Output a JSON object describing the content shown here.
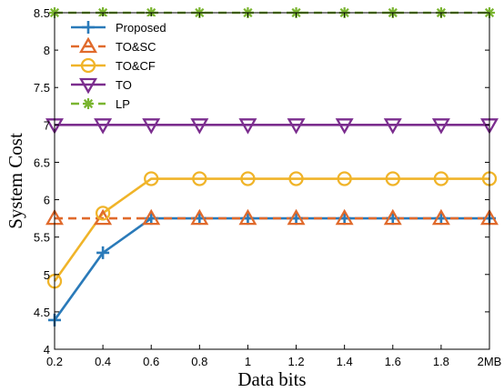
{
  "chart_data": {
    "type": "line",
    "xlabel": "Data bits",
    "ylabel": "System Cost",
    "x": [
      0.2,
      0.4,
      0.6,
      0.8,
      1.0,
      1.2,
      1.4,
      1.6,
      1.8,
      2.0
    ],
    "x_tick_labels": [
      "0.2",
      "0.4",
      "0.6",
      "0.8",
      "1",
      "1.2",
      "1.4",
      "1.6",
      "1.8",
      "2MB"
    ],
    "y_ticks": [
      4,
      4.5,
      5,
      5.5,
      6,
      6.5,
      7,
      7.5,
      8,
      8.5
    ],
    "y_tick_labels": [
      "4",
      "4.5",
      "5",
      "5.5",
      "6",
      "6.5",
      "7",
      "7.5",
      "8",
      "8.5"
    ],
    "xlim": [
      0.2,
      2.0
    ],
    "ylim": [
      4,
      8.5
    ],
    "grid": false,
    "legend_position": "top-left",
    "series": [
      {
        "name": "Proposed",
        "color": "#2a7ab9",
        "marker": "plus",
        "dash": "solid",
        "values": [
          4.39,
          5.29,
          5.75,
          5.75,
          5.75,
          5.75,
          5.75,
          5.75,
          5.75,
          5.75
        ]
      },
      {
        "name": "TO&SC",
        "color": "#e06a2c",
        "marker": "triangle-up",
        "dash": "dashed",
        "values": [
          5.75,
          5.75,
          5.75,
          5.75,
          5.75,
          5.75,
          5.75,
          5.75,
          5.75,
          5.75
        ]
      },
      {
        "name": "TO&CF",
        "color": "#f0b429",
        "marker": "circle",
        "dash": "solid",
        "values": [
          4.91,
          5.82,
          6.28,
          6.28,
          6.28,
          6.28,
          6.28,
          6.28,
          6.28,
          6.28
        ]
      },
      {
        "name": "TO",
        "color": "#7b2d8e",
        "marker": "triangle-down",
        "dash": "solid",
        "values": [
          7.0,
          7.0,
          7.0,
          7.0,
          7.0,
          7.0,
          7.0,
          7.0,
          7.0,
          7.0
        ]
      },
      {
        "name": "LP",
        "color": "#7ab530",
        "marker": "asterisk",
        "dash": "dashed",
        "values": [
          8.5,
          8.5,
          8.5,
          8.5,
          8.5,
          8.5,
          8.5,
          8.5,
          8.5,
          8.5
        ]
      }
    ]
  }
}
